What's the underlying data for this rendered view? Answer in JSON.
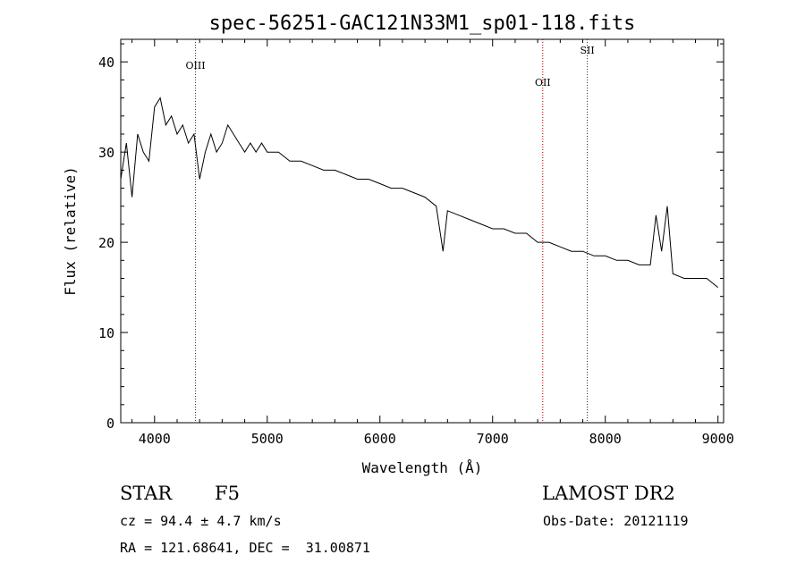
{
  "chart_data": {
    "type": "line",
    "title": "spec-56251-GAC121N33M1_sp01-118.fits",
    "xlabel": "Wavelength (Å)",
    "ylabel": "Flux (relative)",
    "xlim": [
      3700,
      9050
    ],
    "ylim": [
      0,
      42.5
    ],
    "xticks": [
      4000,
      5000,
      6000,
      7000,
      8000,
      9000
    ],
    "yticks": [
      0,
      10,
      20,
      30,
      40
    ],
    "series": [
      {
        "x": [
          3700,
          3750,
          3800,
          3850,
          3900,
          3950,
          4000,
          4050,
          4100,
          4150,
          4200,
          4250,
          4300,
          4350,
          4400,
          4450,
          4500,
          4550,
          4600,
          4650,
          4700,
          4750,
          4800,
          4850,
          4900,
          4950,
          5000,
          5100,
          5200,
          5300,
          5400,
          5500,
          5600,
          5700,
          5800,
          5900,
          6000,
          6100,
          6200,
          6300,
          6400,
          6500,
          6560,
          6600,
          6700,
          6800,
          6900,
          7000,
          7100,
          7200,
          7300,
          7400,
          7500,
          7600,
          7700,
          7800,
          7900,
          8000,
          8100,
          8200,
          8300,
          8400,
          8450,
          8500,
          8550,
          8600,
          8700,
          8800,
          8900,
          9000
        ],
        "y": [
          27,
          31,
          25,
          32,
          30,
          29,
          35,
          36,
          33,
          34,
          32,
          33,
          31,
          32,
          27,
          30,
          32,
          30,
          31,
          33,
          32,
          31,
          30,
          31,
          30,
          31,
          30,
          30,
          29,
          29,
          28.5,
          28,
          28,
          27.5,
          27,
          27,
          26.5,
          26,
          26,
          25.5,
          25,
          24,
          19,
          23.5,
          23,
          22.5,
          22,
          21.5,
          21.5,
          21,
          21,
          20,
          20,
          19.5,
          19,
          19,
          18.5,
          18.5,
          18,
          18,
          17.5,
          17.5,
          23,
          19,
          24,
          16.5,
          16,
          16,
          16,
          15
        ]
      }
    ],
    "vlines": [
      {
        "x": 4363,
        "label": "OIII"
      },
      {
        "x": 7445,
        "label": "OII"
      },
      {
        "x": 7840,
        "label": "SII"
      }
    ],
    "line_color": "#000000",
    "vline_color": "#8b0000",
    "grid": false,
    "legend": "none"
  },
  "info": {
    "object_class": "STAR",
    "subclass": "F5",
    "survey": "LAMOST DR2",
    "cz_text": "cz = 94.4 ± 4.7 km/s",
    "obs_date_text": "Obs-Date: 20121119",
    "coords_text": "RA = 121.68641, DEC =  31.00871"
  }
}
